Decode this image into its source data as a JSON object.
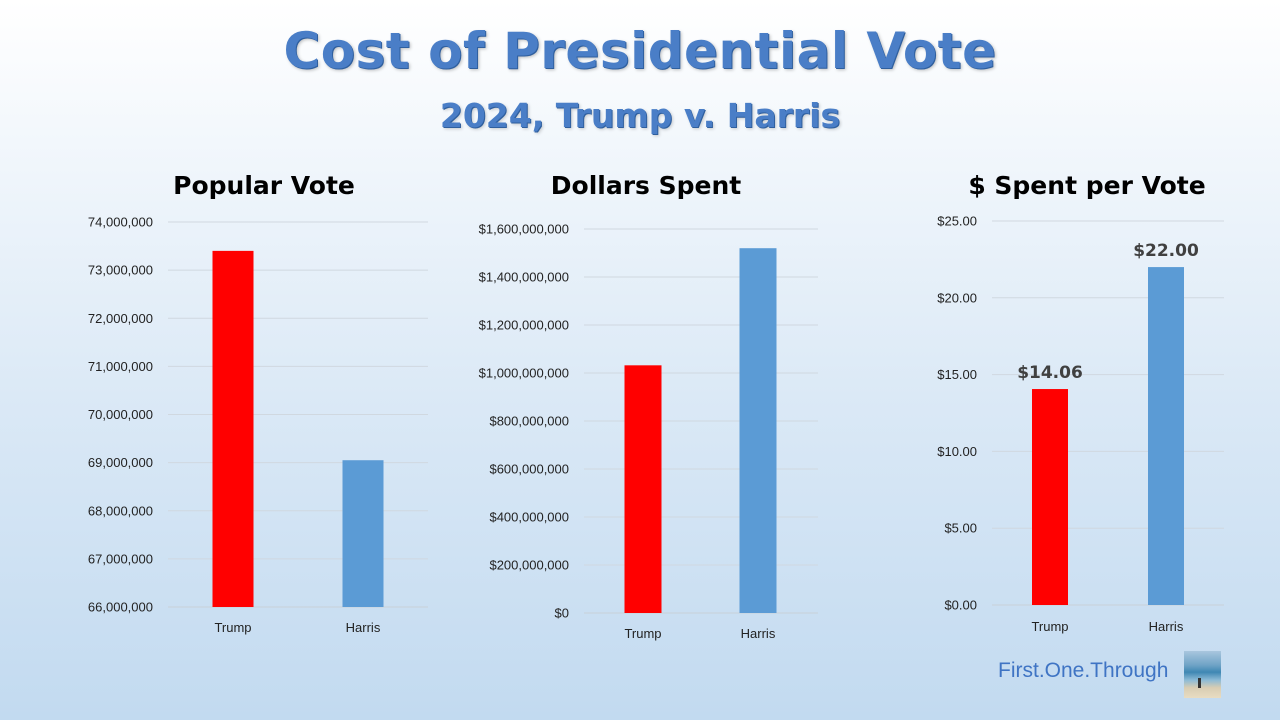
{
  "title": "Cost of Presidential Vote",
  "subtitle": "2024, Trump v. Harris",
  "branding": {
    "text": "First.One.Through",
    "image": "beach-photo-icon"
  },
  "colors": {
    "trump": "#ff0000",
    "harris": "#5b9bd5",
    "title": "#4a7ec7"
  },
  "chart_data": [
    {
      "type": "bar",
      "title": "Popular Vote",
      "categories": [
        "Trump",
        "Harris"
      ],
      "values": [
        73400000,
        69050000
      ],
      "ylim": [
        66000000,
        74000000
      ],
      "yticks": [
        66000000,
        67000000,
        68000000,
        69000000,
        70000000,
        71000000,
        72000000,
        73000000,
        74000000
      ],
      "ytick_labels": [
        "66,000,000",
        "67,000,000",
        "68,000,000",
        "69,000,000",
        "70,000,000",
        "71,000,000",
        "72,000,000",
        "73,000,000",
        "74,000,000"
      ],
      "data_labels": null,
      "grid": true
    },
    {
      "type": "bar",
      "title": "Dollars Spent",
      "categories": [
        "Trump",
        "Harris"
      ],
      "values": [
        1032000000,
        1520000000
      ],
      "ylim": [
        0,
        1600000000
      ],
      "yticks": [
        0,
        200000000,
        400000000,
        600000000,
        800000000,
        1000000000,
        1200000000,
        1400000000,
        1600000000
      ],
      "ytick_labels": [
        "$0",
        "$200,000,000",
        "$400,000,000",
        "$600,000,000",
        "$800,000,000",
        "$1,000,000,000",
        "$1,200,000,000",
        "$1,400,000,000",
        "$1,600,000,000"
      ],
      "data_labels": null,
      "grid": true
    },
    {
      "type": "bar",
      "title": "$ Spent per Vote",
      "categories": [
        "Trump",
        "Harris"
      ],
      "values": [
        14.06,
        22.0
      ],
      "ylim": [
        0,
        25
      ],
      "yticks": [
        0,
        5,
        10,
        15,
        20,
        25
      ],
      "ytick_labels": [
        "$0.00",
        "$5.00",
        "$10.00",
        "$15.00",
        "$20.00",
        "$25.00"
      ],
      "data_labels": [
        "$14.06",
        "$22.00"
      ],
      "grid": true
    }
  ]
}
